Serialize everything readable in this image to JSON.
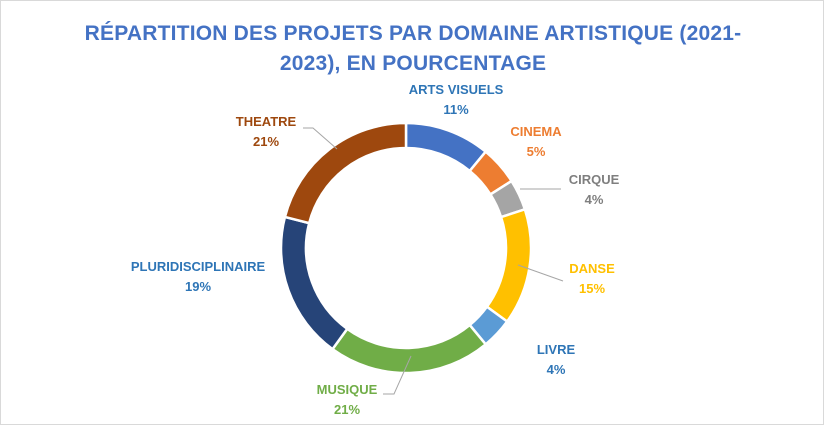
{
  "chart_data": {
    "type": "pie",
    "style": "doughnut",
    "title": "RÉPARTITION DES PROJETS PAR DOMAINE ARTISTIQUE (2021-2023), EN POURCENTAGE",
    "slices": [
      {
        "label": "ARTS VISUELS",
        "value": 11,
        "display": "11%",
        "color": "#4472c4"
      },
      {
        "label": "CINEMA",
        "value": 5,
        "display": "5%",
        "color": "#ed7d31"
      },
      {
        "label": "CIRQUE",
        "value": 4,
        "display": "4%",
        "color": "#a5a5a5"
      },
      {
        "label": "DANSE",
        "value": 15,
        "display": "15%",
        "color": "#ffc000"
      },
      {
        "label": "LIVRE",
        "value": 4,
        "display": "4%",
        "color": "#5b9bd5"
      },
      {
        "label": "MUSIQUE",
        "value": 21,
        "display": "21%",
        "color": "#70ad47"
      },
      {
        "label": "PLURIDISCIPLINAIRE",
        "value": 19,
        "display": "19%",
        "color": "#264478"
      },
      {
        "label": "THEATRE",
        "value": 21,
        "display": "21%",
        "color": "#9e480e"
      }
    ],
    "label_colors": {
      "ARTS VISUELS": "#2e75b6",
      "CINEMA": "#ed7d31",
      "CIRQUE": "#7f7f7f",
      "DANSE": "#ffc000",
      "LIVRE": "#2e75b6",
      "MUSIQUE": "#70ad47",
      "PLURIDISCIPLINAIRE": "#2e75b6",
      "THEATRE": "#9e480e"
    }
  }
}
